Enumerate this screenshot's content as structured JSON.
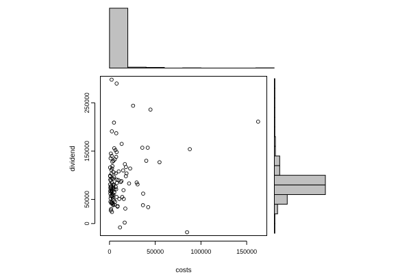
{
  "chart_data": [
    {
      "type": "scatter",
      "xlabel": "costs",
      "ylabel": "dividend",
      "xlim": [
        -10000,
        172000
      ],
      "ylim": [
        -25000,
        305000
      ],
      "xticks": [
        0,
        50000,
        100000,
        150000
      ],
      "yticks": [
        0,
        50000,
        150000,
        250000
      ],
      "xtick_labels": [
        "0",
        "50000",
        "100000",
        "150000"
      ],
      "ytick_labels": [
        "0",
        "50000",
        "150000",
        "250000"
      ],
      "grid": false,
      "legend": "none",
      "marker": "open-circle",
      "x": [
        2300,
        7800,
        25800,
        44800,
        4900,
        2600,
        7400,
        13300,
        5200,
        35900,
        41800,
        87800,
        40200,
        54700,
        6500,
        7800,
        1500,
        2400,
        1200,
        3100,
        4400,
        16800,
        5800,
        7300,
        3200,
        2800,
        18000,
        14900,
        700,
        1900,
        10100,
        4600,
        6800,
        22600,
        18600,
        17900,
        2100,
        700,
        5000,
        900,
        8000,
        1300,
        13100,
        8100,
        2600,
        21400,
        30700,
        29700,
        4200,
        1800,
        4200,
        1000,
        3300,
        5300,
        2000,
        7300,
        15300,
        800,
        2200,
        36800,
        900,
        4300,
        2900,
        13900,
        15600,
        10700,
        3600,
        36600,
        42300,
        8800,
        4000,
        2000,
        3200,
        17300,
        1700,
        16600,
        11500,
        84800,
        162500,
        1500,
        2800,
        3500,
        1200,
        4900,
        6100,
        1000,
        2400,
        3700,
        5500,
        8900,
        1400,
        2700,
        4400,
        6800,
        1100,
        3000,
        1900,
        5200,
        700,
        2600,
        4100,
        9700,
        12200,
        600,
        1800,
        3300,
        7700,
        2200
      ],
      "y": [
        298000,
        290000,
        244000,
        236000,
        209000,
        191000,
        187000,
        165000,
        156000,
        157000,
        157000,
        154000,
        130000,
        127000,
        152000,
        148000,
        145000,
        140000,
        135000,
        128000,
        130000,
        123000,
        133000,
        138000,
        119000,
        114000,
        117000,
        110000,
        116000,
        111000,
        108000,
        106000,
        104000,
        114000,
        104000,
        98000,
        103000,
        98000,
        96000,
        91000,
        91000,
        89000,
        88000,
        84000,
        85000,
        83000,
        81000,
        85000,
        80000,
        78000,
        77000,
        75000,
        73000,
        71000,
        69000,
        71000,
        69000,
        67000,
        65000,
        62000,
        62000,
        60000,
        57000,
        55000,
        51000,
        51000,
        50000,
        38000,
        34000,
        35000,
        38000,
        42000,
        42000,
        31000,
        30000,
        2000,
        -8000,
        -18000,
        211000,
        57000,
        58000,
        54000,
        52000,
        48000,
        45000,
        45000,
        44000,
        40000,
        39000,
        36000,
        27000,
        24000,
        81000,
        76000,
        72000,
        69000,
        66000,
        64000,
        99000,
        94000,
        93000,
        90000,
        86000,
        81000,
        75000,
        61000,
        55000,
        44000
      ]
    },
    {
      "type": "bar",
      "orientation": "vertical",
      "axis_labels": "none",
      "bin_edges": [
        0,
        20000,
        40000,
        60000,
        80000,
        100000,
        120000,
        140000,
        160000,
        180000
      ],
      "values": [
        100,
        1.5,
        1,
        0,
        0.3,
        0,
        0,
        0,
        0.3
      ]
    },
    {
      "type": "bar",
      "orientation": "horizontal",
      "axis_labels": "none",
      "bin_edges": [
        -20000,
        0,
        20000,
        40000,
        60000,
        80000,
        100000,
        120000,
        140000,
        160000,
        180000,
        200000,
        220000,
        240000,
        260000,
        280000,
        300000
      ],
      "values": [
        1,
        1,
        6,
        24,
        95,
        95,
        10,
        10,
        2,
        2,
        1,
        1,
        1,
        1,
        1,
        1
      ]
    }
  ]
}
